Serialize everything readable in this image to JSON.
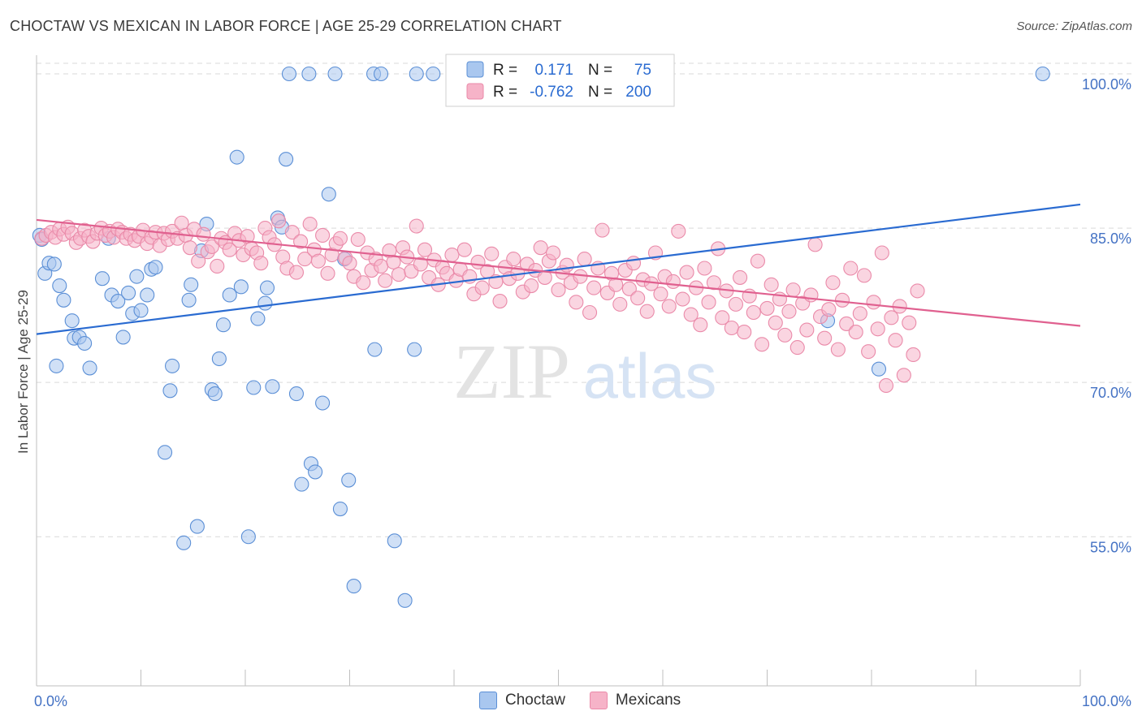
{
  "title": "CHOCTAW VS MEXICAN IN LABOR FORCE | AGE 25-29 CORRELATION CHART",
  "source": "Source: ZipAtlas.com",
  "watermark": {
    "zip": "ZIP",
    "atlas": "atlas"
  },
  "colors": {
    "choctaw_fill": "#a9c7ef",
    "choctaw_stroke": "#5b8fd6",
    "choctaw_line": "#2a6bd1",
    "mexican_fill": "#f6b3c8",
    "mexican_stroke": "#ea8aa9",
    "mexican_line": "#e0608f",
    "axis_text": "#4472c4",
    "grid": "#d9d9d9"
  },
  "stats_legend": {
    "rows": [
      {
        "r_label": "R =",
        "r_value": "0.171",
        "n_label": "N =",
        "n_value": "75"
      },
      {
        "r_label": "R =",
        "r_value": "-0.762",
        "n_label": "N =",
        "n_value": "200"
      }
    ]
  },
  "bottom_legend": [
    {
      "name": "Choctaw"
    },
    {
      "name": "Mexicans"
    }
  ],
  "chart_data": {
    "type": "scatter",
    "title": "CHOCTAW VS MEXICAN IN LABOR FORCE | AGE 25-29 CORRELATION CHART",
    "xlabel": "",
    "ylabel": "In Labor Force | Age 25-29",
    "xlim": [
      0,
      100
    ],
    "ylim": [
      40.5,
      101.5
    ],
    "x_tick_labels": [
      "0.0%",
      "100.0%"
    ],
    "y_ticks": [
      55,
      70,
      85,
      100
    ],
    "y_tick_labels": [
      "55.0%",
      "70.0%",
      "85.0%",
      "100.0%"
    ],
    "grid": true,
    "series": [
      {
        "name": "Choctaw",
        "r": 0.171,
        "n": 75,
        "trend": {
          "x": [
            0,
            100
          ],
          "y": [
            74.7,
            87.3
          ]
        },
        "points": [
          [
            0.3,
            84.3
          ],
          [
            0.5,
            83.9
          ],
          [
            0.8,
            80.6
          ],
          [
            1.2,
            81.6
          ],
          [
            1.7,
            81.5
          ],
          [
            2.2,
            79.4
          ],
          [
            2.6,
            78.0
          ],
          [
            3.4,
            76.0
          ],
          [
            1.9,
            71.6
          ],
          [
            3.6,
            74.3
          ],
          [
            4.1,
            74.4
          ],
          [
            5.1,
            71.4
          ],
          [
            4.6,
            73.8
          ],
          [
            6.3,
            80.1
          ],
          [
            6.9,
            84.0
          ],
          [
            7.2,
            78.5
          ],
          [
            7.8,
            77.9
          ],
          [
            8.3,
            74.4
          ],
          [
            8.8,
            78.7
          ],
          [
            9.2,
            76.7
          ],
          [
            9.6,
            80.3
          ],
          [
            10.0,
            77.0
          ],
          [
            10.6,
            78.5
          ],
          [
            11.0,
            81.0
          ],
          [
            11.4,
            81.2
          ],
          [
            12.3,
            63.2
          ],
          [
            12.8,
            69.2
          ],
          [
            13.0,
            71.6
          ],
          [
            14.1,
            54.4
          ],
          [
            14.6,
            78.0
          ],
          [
            14.8,
            79.5
          ],
          [
            15.4,
            56.0
          ],
          [
            15.8,
            82.8
          ],
          [
            16.3,
            85.4
          ],
          [
            16.8,
            69.3
          ],
          [
            17.1,
            68.9
          ],
          [
            17.5,
            72.3
          ],
          [
            17.9,
            75.6
          ],
          [
            18.5,
            78.5
          ],
          [
            19.2,
            91.9
          ],
          [
            19.6,
            79.3
          ],
          [
            20.3,
            55.0
          ],
          [
            20.8,
            69.5
          ],
          [
            21.2,
            76.2
          ],
          [
            21.9,
            77.7
          ],
          [
            22.1,
            79.2
          ],
          [
            22.6,
            69.6
          ],
          [
            23.1,
            86.0
          ],
          [
            23.5,
            85.1
          ],
          [
            23.9,
            91.7
          ],
          [
            24.9,
            68.9
          ],
          [
            25.4,
            60.1
          ],
          [
            26.3,
            62.1
          ],
          [
            26.7,
            61.3
          ],
          [
            27.4,
            68.0
          ],
          [
            28.0,
            88.3
          ],
          [
            29.1,
            57.7
          ],
          [
            29.5,
            82.0
          ],
          [
            29.9,
            60.5
          ],
          [
            30.4,
            50.2
          ],
          [
            32.4,
            73.2
          ],
          [
            34.3,
            54.6
          ],
          [
            35.3,
            48.8
          ],
          [
            36.2,
            73.2
          ],
          [
            24.2,
            100.0
          ],
          [
            26.1,
            100.0
          ],
          [
            28.6,
            100.0
          ],
          [
            32.3,
            100.0
          ],
          [
            33.0,
            100.0
          ],
          [
            36.4,
            100.0
          ],
          [
            38.0,
            100.0
          ],
          [
            45.5,
            100.0
          ],
          [
            50.0,
            100.0
          ],
          [
            75.8,
            76.0
          ],
          [
            80.7,
            71.3
          ],
          [
            96.4,
            100.0
          ]
        ]
      },
      {
        "name": "Mexicans",
        "r": -0.762,
        "n": 200,
        "trend": {
          "x": [
            0,
            100
          ],
          "y": [
            85.8,
            75.5
          ]
        },
        "points": [
          [
            0.5,
            84.0
          ],
          [
            0.9,
            84.3
          ],
          [
            1.4,
            84.6
          ],
          [
            1.8,
            84.1
          ],
          [
            2.2,
            84.9
          ],
          [
            2.6,
            84.4
          ],
          [
            3.0,
            85.1
          ],
          [
            3.4,
            84.5
          ],
          [
            3.8,
            83.6
          ],
          [
            4.2,
            84.0
          ],
          [
            4.6,
            84.8
          ],
          [
            5.0,
            84.2
          ],
          [
            5.4,
            83.7
          ],
          [
            5.8,
            84.5
          ],
          [
            6.2,
            85.0
          ],
          [
            6.6,
            84.3
          ],
          [
            7.0,
            84.7
          ],
          [
            7.4,
            84.1
          ],
          [
            7.8,
            84.9
          ],
          [
            8.2,
            84.6
          ],
          [
            8.6,
            84.0
          ],
          [
            9.0,
            84.4
          ],
          [
            9.4,
            83.8
          ],
          [
            9.8,
            84.2
          ],
          [
            10.2,
            84.8
          ],
          [
            10.6,
            83.5
          ],
          [
            11.0,
            84.1
          ],
          [
            11.4,
            84.6
          ],
          [
            11.8,
            83.3
          ],
          [
            12.2,
            84.5
          ],
          [
            12.6,
            83.9
          ],
          [
            13.0,
            84.7
          ],
          [
            13.5,
            84.0
          ],
          [
            13.9,
            85.5
          ],
          [
            14.3,
            84.3
          ],
          [
            14.7,
            83.1
          ],
          [
            15.1,
            84.9
          ],
          [
            15.5,
            81.8
          ],
          [
            16.0,
            84.4
          ],
          [
            16.4,
            82.7
          ],
          [
            16.8,
            83.2
          ],
          [
            17.3,
            81.3
          ],
          [
            17.7,
            84.0
          ],
          [
            18.1,
            83.6
          ],
          [
            18.5,
            82.9
          ],
          [
            19.0,
            84.5
          ],
          [
            19.4,
            83.8
          ],
          [
            19.8,
            82.4
          ],
          [
            20.2,
            84.2
          ],
          [
            20.6,
            83.0
          ],
          [
            21.1,
            82.6
          ],
          [
            21.5,
            81.6
          ],
          [
            21.9,
            85.0
          ],
          [
            22.3,
            84.1
          ],
          [
            22.8,
            83.4
          ],
          [
            23.2,
            85.7
          ],
          [
            23.6,
            82.2
          ],
          [
            24.0,
            81.1
          ],
          [
            24.5,
            84.6
          ],
          [
            24.9,
            80.7
          ],
          [
            25.3,
            83.7
          ],
          [
            25.7,
            82.0
          ],
          [
            26.2,
            85.4
          ],
          [
            26.6,
            82.9
          ],
          [
            27.0,
            81.8
          ],
          [
            27.4,
            84.3
          ],
          [
            27.9,
            80.6
          ],
          [
            28.3,
            82.4
          ],
          [
            28.7,
            83.5
          ],
          [
            29.1,
            84.0
          ],
          [
            29.6,
            82.1
          ],
          [
            30.0,
            81.6
          ],
          [
            30.4,
            80.3
          ],
          [
            30.8,
            83.9
          ],
          [
            31.3,
            79.7
          ],
          [
            31.7,
            82.6
          ],
          [
            32.1,
            80.9
          ],
          [
            32.5,
            82.0
          ],
          [
            33.0,
            81.3
          ],
          [
            33.4,
            79.9
          ],
          [
            33.8,
            82.8
          ],
          [
            34.2,
            81.7
          ],
          [
            34.7,
            80.5
          ],
          [
            35.1,
            83.1
          ],
          [
            35.5,
            82.2
          ],
          [
            35.9,
            80.8
          ],
          [
            36.4,
            85.2
          ],
          [
            36.8,
            81.5
          ],
          [
            37.2,
            82.9
          ],
          [
            37.6,
            80.2
          ],
          [
            38.1,
            81.9
          ],
          [
            38.5,
            79.5
          ],
          [
            38.9,
            81.2
          ],
          [
            39.3,
            80.6
          ],
          [
            39.8,
            82.4
          ],
          [
            40.2,
            79.9
          ],
          [
            40.6,
            81.0
          ],
          [
            41.0,
            82.9
          ],
          [
            41.5,
            80.3
          ],
          [
            41.9,
            78.6
          ],
          [
            42.3,
            81.7
          ],
          [
            42.7,
            79.2
          ],
          [
            43.2,
            80.8
          ],
          [
            43.6,
            82.5
          ],
          [
            44.0,
            79.8
          ],
          [
            44.4,
            77.9
          ],
          [
            44.9,
            81.2
          ],
          [
            45.3,
            80.1
          ],
          [
            45.7,
            82.0
          ],
          [
            46.1,
            80.6
          ],
          [
            46.6,
            78.8
          ],
          [
            47.0,
            81.5
          ],
          [
            47.4,
            79.4
          ],
          [
            47.8,
            80.9
          ],
          [
            48.3,
            83.1
          ],
          [
            48.7,
            80.2
          ],
          [
            49.1,
            81.8
          ],
          [
            49.5,
            82.6
          ],
          [
            50.0,
            79.0
          ],
          [
            50.4,
            80.7
          ],
          [
            50.8,
            81.4
          ],
          [
            51.2,
            79.7
          ],
          [
            51.7,
            77.8
          ],
          [
            52.1,
            80.3
          ],
          [
            52.5,
            82.0
          ],
          [
            53.0,
            76.8
          ],
          [
            53.4,
            79.2
          ],
          [
            53.8,
            81.1
          ],
          [
            54.2,
            84.8
          ],
          [
            54.7,
            78.7
          ],
          [
            55.1,
            80.6
          ],
          [
            55.5,
            79.5
          ],
          [
            55.9,
            77.6
          ],
          [
            56.4,
            80.9
          ],
          [
            56.8,
            79.1
          ],
          [
            57.2,
            81.6
          ],
          [
            57.6,
            78.2
          ],
          [
            58.1,
            80.0
          ],
          [
            58.5,
            76.9
          ],
          [
            58.9,
            79.6
          ],
          [
            59.3,
            82.6
          ],
          [
            59.8,
            78.6
          ],
          [
            60.2,
            80.3
          ],
          [
            60.6,
            77.4
          ],
          [
            61.0,
            79.8
          ],
          [
            61.5,
            84.7
          ],
          [
            61.9,
            78.1
          ],
          [
            62.3,
            80.7
          ],
          [
            62.7,
            76.6
          ],
          [
            63.2,
            79.2
          ],
          [
            63.6,
            75.6
          ],
          [
            64.0,
            81.1
          ],
          [
            64.4,
            77.8
          ],
          [
            64.9,
            79.7
          ],
          [
            65.3,
            83.0
          ],
          [
            65.7,
            76.3
          ],
          [
            66.1,
            78.9
          ],
          [
            66.6,
            75.3
          ],
          [
            67.0,
            77.6
          ],
          [
            67.4,
            80.2
          ],
          [
            67.8,
            74.9
          ],
          [
            68.3,
            78.4
          ],
          [
            68.7,
            76.8
          ],
          [
            69.1,
            81.8
          ],
          [
            69.5,
            73.7
          ],
          [
            70.0,
            77.2
          ],
          [
            70.4,
            79.5
          ],
          [
            70.8,
            75.8
          ],
          [
            71.2,
            78.1
          ],
          [
            71.7,
            74.6
          ],
          [
            72.1,
            76.9
          ],
          [
            72.5,
            79.0
          ],
          [
            72.9,
            73.4
          ],
          [
            73.4,
            77.7
          ],
          [
            73.8,
            75.1
          ],
          [
            74.2,
            78.5
          ],
          [
            74.6,
            83.4
          ],
          [
            75.1,
            76.4
          ],
          [
            75.5,
            74.3
          ],
          [
            75.9,
            77.1
          ],
          [
            76.3,
            79.7
          ],
          [
            76.8,
            73.2
          ],
          [
            77.2,
            78.0
          ],
          [
            77.6,
            75.7
          ],
          [
            78.0,
            81.1
          ],
          [
            78.5,
            74.9
          ],
          [
            78.9,
            76.7
          ],
          [
            79.3,
            80.4
          ],
          [
            79.7,
            73.0
          ],
          [
            80.2,
            77.8
          ],
          [
            80.6,
            75.2
          ],
          [
            81.0,
            82.6
          ],
          [
            81.4,
            69.7
          ],
          [
            81.9,
            76.3
          ],
          [
            82.3,
            74.1
          ],
          [
            82.7,
            77.4
          ],
          [
            83.1,
            70.7
          ],
          [
            83.6,
            75.8
          ],
          [
            84.0,
            72.7
          ],
          [
            84.4,
            78.9
          ]
        ]
      }
    ]
  }
}
